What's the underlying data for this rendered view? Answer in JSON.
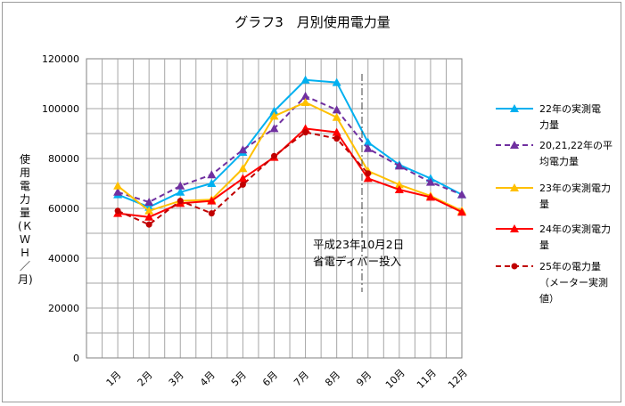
{
  "chart_data": {
    "type": "line",
    "title": "グラフ3　月別使用電力量",
    "ylabel": "使用電力量(ＫＷＨ／月)",
    "xlabel": "",
    "categories": [
      "1月",
      "2月",
      "3月",
      "4月",
      "5月",
      "6月",
      "7月",
      "8月",
      "9月",
      "10月",
      "11月",
      "12月"
    ],
    "ylim": [
      0,
      120000
    ],
    "yticks": [
      0,
      20000,
      40000,
      60000,
      80000,
      100000,
      120000
    ],
    "grid": true,
    "legend_position": "right",
    "series": [
      {
        "name": "22年の実測電力量",
        "color": "#00b0f0",
        "dash": false,
        "marker": "triangle",
        "values": [
          65500,
          60500,
          66500,
          70000,
          82500,
          99000,
          111500,
          110500,
          86500,
          77500,
          72000,
          65500
        ]
      },
      {
        "name": "20,21,22年の平均電力量",
        "color": "#7030a0",
        "dash": true,
        "marker": "triangle",
        "values": [
          66500,
          62500,
          69000,
          73500,
          83500,
          92000,
          105000,
          99500,
          84000,
          77000,
          70500,
          65500
        ]
      },
      {
        "name": "23年の実測電力量",
        "color": "#ffc000",
        "dash": false,
        "marker": "triangle",
        "values": [
          69000,
          59000,
          63000,
          63500,
          76000,
          97000,
          102500,
          96500,
          75000,
          69500,
          65000,
          59000
        ]
      },
      {
        "name": "24年の実測電力量",
        "color": "#ff0000",
        "dash": false,
        "marker": "triangle",
        "values": [
          58000,
          56500,
          62000,
          63000,
          72000,
          80500,
          92000,
          90500,
          72000,
          67500,
          64500,
          58500
        ]
      },
      {
        "name": "25年の電力量(メーター実測値)",
        "color": "#c00000",
        "dash": true,
        "marker": "circle",
        "values": [
          59000,
          53500,
          63000,
          58000,
          69500,
          81000,
          90500,
          88000,
          74000,
          null,
          null,
          null
        ]
      }
    ],
    "legend_lines": [
      [
        "22年の実測電",
        "力量"
      ],
      [
        "20,21,22年の平",
        "均電力量"
      ],
      [
        "23年の実測電力",
        "量"
      ],
      [
        "24年の実測電力",
        "量"
      ],
      [
        "25年の電力量",
        "（メーター実測",
        "値）"
      ]
    ],
    "annotation": {
      "lines": [
        "平成23年10月2日",
        "省電ディバー投入"
      ],
      "at_x": 9.0
    }
  }
}
